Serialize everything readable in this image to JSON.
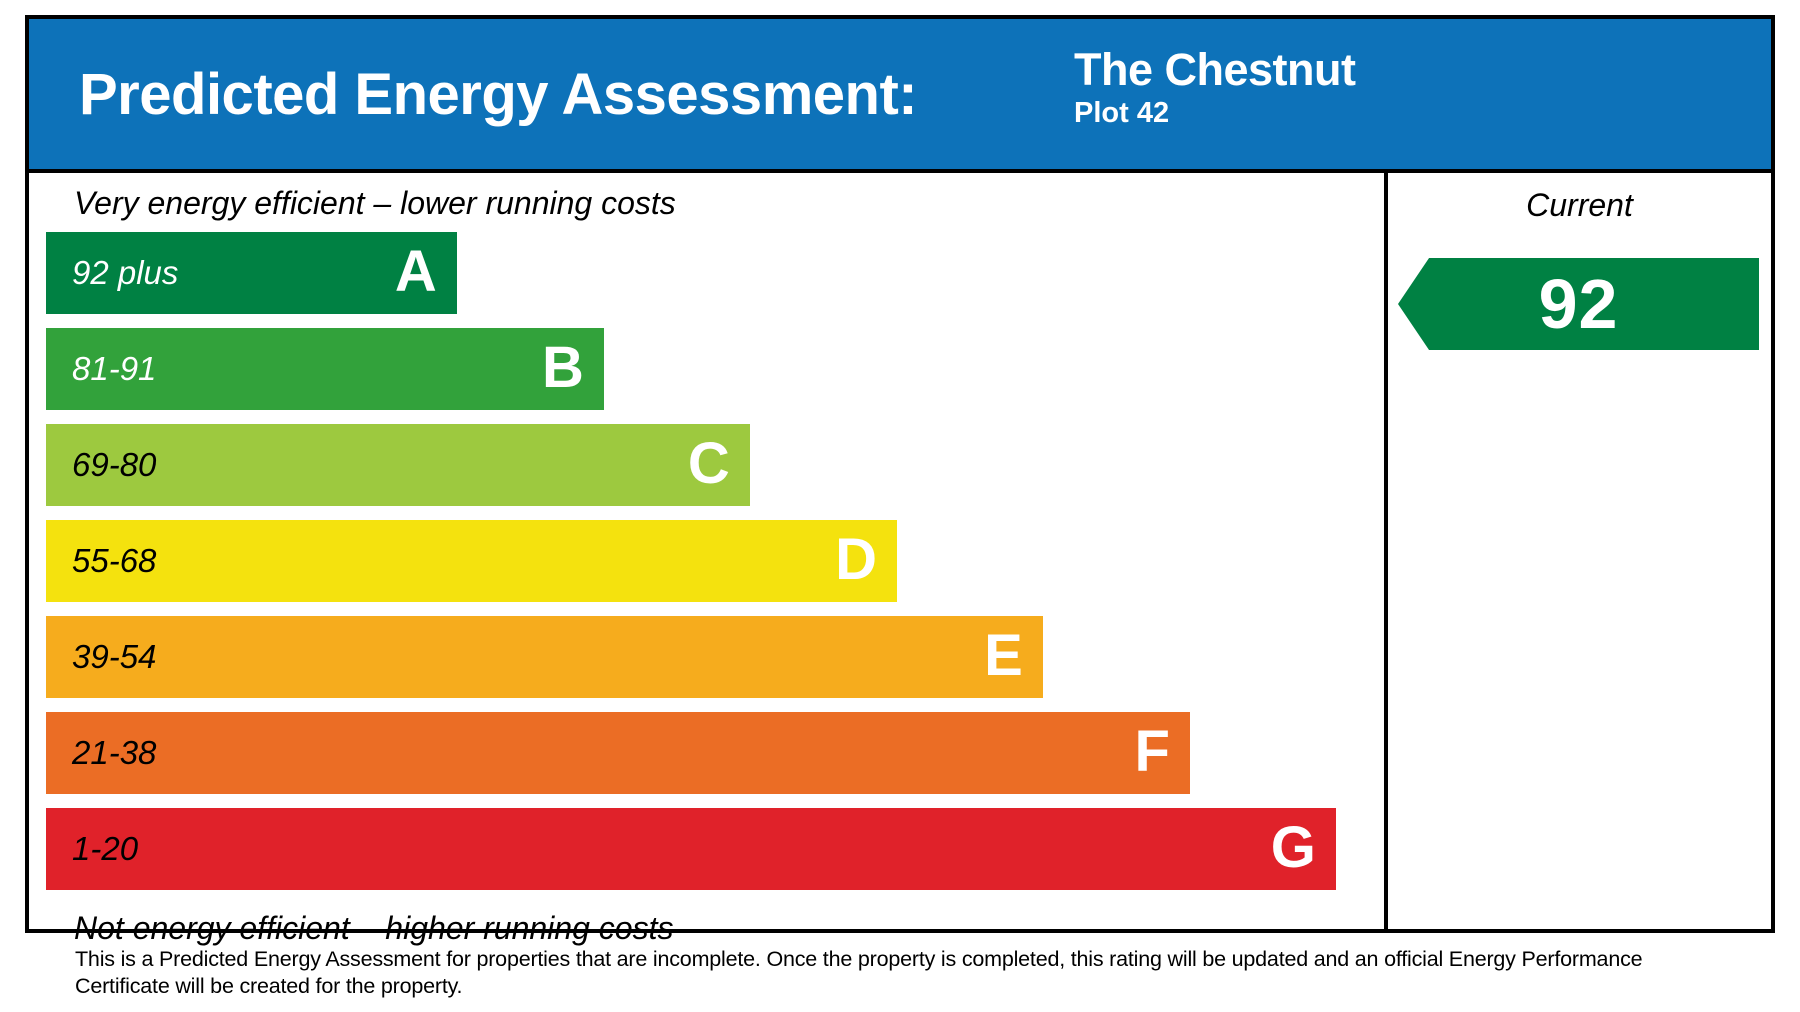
{
  "header": {
    "title": "Predicted Energy Assessment:",
    "property_name": "The Chestnut",
    "plot": "Plot 42",
    "background_color": "#0D72B9"
  },
  "chart_data": {
    "type": "bar",
    "title": "Predicted Energy Assessment",
    "top_caption": "Very energy efficient – lower running costs",
    "bottom_caption": "Not energy efficient – higher running costs",
    "legend_position": "right",
    "bands": [
      {
        "letter": "A",
        "range": "92 plus",
        "color": "#008143",
        "width_pct": 30.7,
        "range_text_color": "#ffffff"
      },
      {
        "letter": "B",
        "range": "81-91",
        "color": "#32A23B",
        "width_pct": 41.7,
        "range_text_color": "#ffffff"
      },
      {
        "letter": "C",
        "range": "69-80",
        "color": "#9DC93F",
        "width_pct": 52.6,
        "range_text_color": "#000000"
      },
      {
        "letter": "D",
        "range": "55-68",
        "color": "#F4E20E",
        "width_pct": 63.6,
        "range_text_color": "#000000"
      },
      {
        "letter": "E",
        "range": "39-54",
        "color": "#F6AC1D",
        "width_pct": 74.5,
        "range_text_color": "#000000"
      },
      {
        "letter": "F",
        "range": "21-38",
        "color": "#EB6D25",
        "width_pct": 85.5,
        "range_text_color": "#000000"
      },
      {
        "letter": "G",
        "range": "1-20",
        "color": "#E0222A",
        "width_pct": 96.4,
        "range_text_color": "#000000"
      }
    ],
    "current": {
      "label": "Current",
      "value": "92",
      "band": "A",
      "color": "#008143"
    }
  },
  "footer": {
    "line1": "This is a Predicted Energy Assessment for properties that are incomplete. Once the property is completed, this rating will be updated and an official Energy Performance",
    "line2": "Certificate will be created for the property."
  }
}
